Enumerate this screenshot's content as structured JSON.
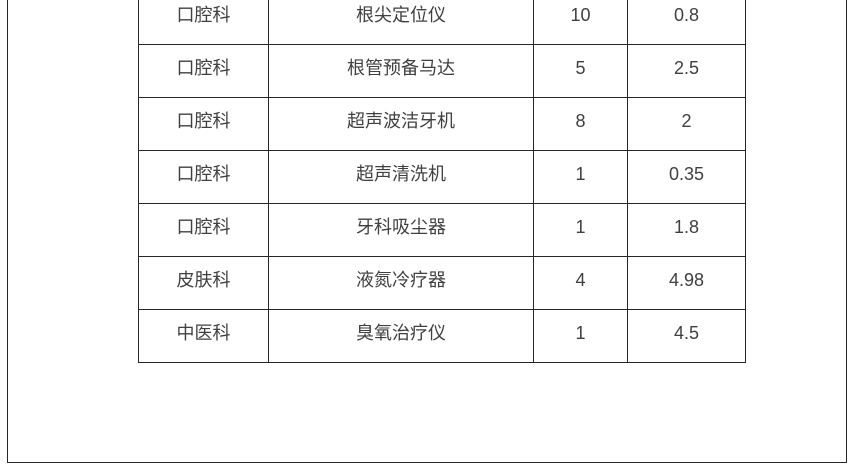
{
  "colors": {
    "border": "#262626",
    "text": "#404040",
    "background": "#ffffff"
  },
  "document": {
    "table": {
      "rows": [
        [
          "口腔科",
          "根尖定位仪",
          "10",
          "0.8"
        ],
        [
          "口腔科",
          "根管预备马达",
          "5",
          "2.5"
        ],
        [
          "口腔科",
          "超声波洁牙机",
          "8",
          "2"
        ],
        [
          "口腔科",
          "超声清洗机",
          "1",
          "0.35"
        ],
        [
          "口腔科",
          "牙科吸尘器",
          "1",
          "1.8"
        ],
        [
          "皮肤科",
          "液氮冷疗器",
          "4",
          "4.98"
        ],
        [
          "中医科",
          "臭氧治疗仪",
          "1",
          "4.5"
        ]
      ]
    }
  }
}
